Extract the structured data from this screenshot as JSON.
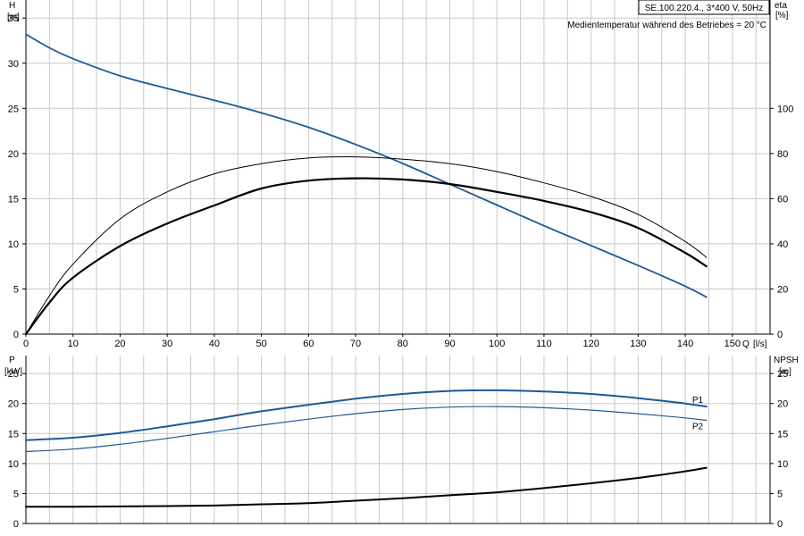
{
  "title_box": "SE.100.220.4., 3*400 V, 50Hz",
  "subtitle": "Medientemperatur während des Betriebes = 20 °C",
  "chart_data": [
    {
      "type": "line",
      "name": "top",
      "left_axis": {
        "label": "H",
        "unit": "[m]",
        "ticks": [
          0,
          5,
          10,
          15,
          20,
          25,
          30,
          35
        ],
        "ylim": [
          0,
          37
        ]
      },
      "right_axis": {
        "label": "eta",
        "unit": "[%]",
        "ticks": [
          0,
          20,
          40,
          60,
          80,
          100
        ],
        "ylim": [
          0,
          148
        ]
      },
      "x_axis": {
        "label": "Q",
        "unit": "[l/s]",
        "ticks": [
          0,
          10,
          20,
          30,
          40,
          50,
          60,
          70,
          80,
          90,
          100,
          110,
          120,
          130,
          140,
          150
        ],
        "xlim": [
          0,
          158
        ]
      },
      "grid": true,
      "series": [
        {
          "id": "H",
          "axis": "left",
          "color": "#1f5a94",
          "width": 1.8,
          "x": [
            0,
            5,
            10,
            20,
            30,
            40,
            50,
            60,
            70,
            80,
            90,
            100,
            110,
            120,
            130,
            140,
            144.5
          ],
          "y": [
            33.2,
            31.7,
            30.5,
            28.6,
            27.2,
            25.9,
            24.5,
            22.9,
            21.0,
            18.9,
            16.6,
            14.3,
            12.0,
            9.8,
            7.6,
            5.3,
            4.1
          ]
        },
        {
          "id": "eta-thin",
          "axis": "right",
          "color": "#000000",
          "width": 1,
          "x": [
            0,
            5,
            10,
            20,
            30,
            40,
            50,
            60,
            70,
            80,
            90,
            100,
            110,
            120,
            130,
            140,
            144.5
          ],
          "y": [
            0,
            17,
            31,
            51,
            63,
            71,
            75.5,
            78,
            78.5,
            77.5,
            75.5,
            72,
            67,
            61,
            53,
            41,
            34
          ]
        },
        {
          "id": "eta-thick",
          "axis": "right",
          "color": "#000000",
          "width": 2.2,
          "x": [
            0,
            5,
            10,
            20,
            30,
            40,
            50,
            60,
            70,
            80,
            90,
            100,
            110,
            120,
            130,
            140,
            144.5
          ],
          "y": [
            0,
            14,
            25,
            39,
            49,
            57,
            64.5,
            68,
            69,
            68.5,
            66.5,
            63,
            59,
            54,
            47,
            36,
            30
          ]
        }
      ]
    },
    {
      "type": "line",
      "name": "bottom",
      "left_axis": {
        "label": "P",
        "unit": "[kW]",
        "ticks": [
          0,
          5,
          10,
          15,
          20,
          25
        ],
        "ylim": [
          0,
          28
        ]
      },
      "right_axis": {
        "label": "NPSH",
        "unit": "[m]",
        "ticks": [
          0,
          5,
          10,
          15,
          20,
          25
        ],
        "ylim": [
          0,
          28
        ]
      },
      "x_axis": {
        "xlim": [
          0,
          158
        ]
      },
      "grid": true,
      "series": [
        {
          "id": "P1",
          "name": "P1",
          "axis": "left",
          "color": "#1f5a94",
          "width": 2,
          "x": [
            0,
            10,
            20,
            30,
            40,
            50,
            60,
            70,
            80,
            90,
            100,
            110,
            120,
            130,
            140,
            144.5
          ],
          "y": [
            13.9,
            14.3,
            15.1,
            16.2,
            17.4,
            18.7,
            19.8,
            20.8,
            21.6,
            22.1,
            22.2,
            22.0,
            21.6,
            20.9,
            20.0,
            19.5
          ]
        },
        {
          "id": "P2",
          "name": "P2",
          "axis": "left",
          "color": "#1f5a94",
          "width": 1.2,
          "x": [
            0,
            10,
            20,
            30,
            40,
            50,
            60,
            70,
            80,
            90,
            100,
            110,
            120,
            130,
            140,
            144.5
          ],
          "y": [
            12.0,
            12.4,
            13.2,
            14.2,
            15.3,
            16.4,
            17.4,
            18.3,
            19.0,
            19.4,
            19.5,
            19.3,
            18.9,
            18.3,
            17.6,
            17.2
          ]
        },
        {
          "id": "NPSH",
          "axis": "right",
          "color": "#000000",
          "width": 2,
          "x": [
            0,
            10,
            20,
            30,
            40,
            50,
            60,
            70,
            80,
            90,
            100,
            110,
            120,
            130,
            140,
            144.5
          ],
          "y": [
            2.8,
            2.8,
            2.85,
            2.9,
            3.0,
            3.2,
            3.4,
            3.8,
            4.2,
            4.7,
            5.2,
            5.9,
            6.7,
            7.6,
            8.7,
            9.3
          ]
        }
      ]
    }
  ]
}
